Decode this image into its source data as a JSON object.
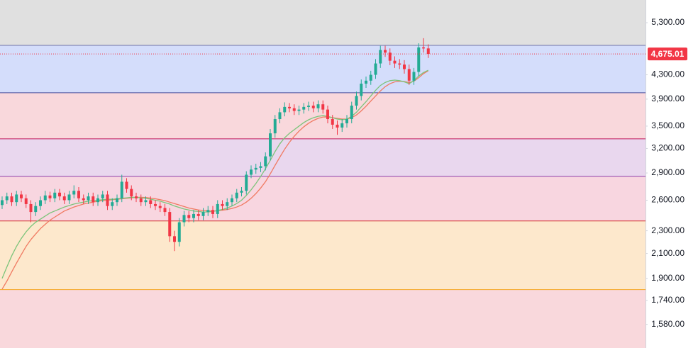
{
  "chart_data": {
    "type": "candlestick",
    "log_scale": true,
    "ylim": [
      1437,
      5805
    ],
    "yticks": [
      {
        "value": 5300,
        "label": "5,300.00"
      },
      {
        "value": 4300,
        "label": "4,300.00"
      },
      {
        "value": 3900,
        "label": "3,900.00"
      },
      {
        "value": 3500,
        "label": "3,500.00"
      },
      {
        "value": 3200,
        "label": "3,200.00"
      },
      {
        "value": 2900,
        "label": "2,900.00"
      },
      {
        "value": 2600,
        "label": "2,600.00"
      },
      {
        "value": 2300,
        "label": "2,300.00"
      },
      {
        "value": 2100,
        "label": "2,100.00"
      },
      {
        "value": 1900,
        "label": "1,900.00"
      },
      {
        "value": 1740,
        "label": "1,740.00"
      },
      {
        "value": 1580,
        "label": "1,580.00"
      }
    ],
    "grid": false,
    "up_color": "#22ab94",
    "down_color": "#f23645",
    "open": [
      2550,
      2600,
      2640,
      2580,
      2660,
      2620,
      2560,
      2480,
      2540,
      2600,
      2650,
      2620,
      2680,
      2640,
      2600,
      2660,
      2700,
      2620,
      2600,
      2640,
      2580,
      2620,
      2660,
      2540,
      2580,
      2620,
      2800,
      2720,
      2640,
      2620,
      2580,
      2600,
      2560,
      2540,
      2520,
      2480,
      2250,
      2200,
      2380,
      2450,
      2420,
      2460,
      2440,
      2480,
      2500,
      2460,
      2560,
      2540,
      2580,
      2620,
      2680,
      2700,
      2880,
      2940,
      2960,
      2980,
      3100,
      3400,
      3600,
      3700,
      3780,
      3760,
      3720,
      3740,
      3780,
      3800,
      3760,
      3820,
      3740,
      3600,
      3520,
      3480,
      3540,
      3600,
      3800,
      3950,
      4150,
      4200,
      4300,
      4500,
      4750,
      4700,
      4550,
      4500,
      4480,
      4400,
      4200,
      4350,
      4800,
      4780
    ],
    "high": [
      2640,
      2680,
      2680,
      2700,
      2700,
      2660,
      2600,
      2580,
      2640,
      2700,
      2690,
      2720,
      2720,
      2680,
      2700,
      2760,
      2740,
      2660,
      2680,
      2680,
      2660,
      2700,
      2700,
      2620,
      2660,
      2880,
      2840,
      2760,
      2680,
      2660,
      2640,
      2640,
      2600,
      2580,
      2560,
      2520,
      2300,
      2420,
      2490,
      2490,
      2500,
      2500,
      2520,
      2540,
      2540,
      2600,
      2600,
      2620,
      2660,
      2720,
      2740,
      2920,
      2990,
      3010,
      3030,
      3150,
      3460,
      3660,
      3760,
      3850,
      3840,
      3820,
      3800,
      3840,
      3860,
      3860,
      3880,
      3880,
      3800,
      3660,
      3580,
      3600,
      3660,
      3860,
      4020,
      4220,
      4270,
      4370,
      4580,
      4830,
      4830,
      4780,
      4630,
      4580,
      4560,
      4480,
      4420,
      4880,
      4980,
      4860
    ],
    "low": [
      2510,
      2560,
      2540,
      2540,
      2580,
      2520,
      2380,
      2440,
      2500,
      2560,
      2580,
      2580,
      2600,
      2560,
      2560,
      2620,
      2580,
      2560,
      2560,
      2540,
      2540,
      2580,
      2500,
      2500,
      2540,
      2580,
      2680,
      2600,
      2580,
      2540,
      2540,
      2520,
      2500,
      2480,
      2440,
      2200,
      2120,
      2160,
      2340,
      2380,
      2380,
      2400,
      2400,
      2440,
      2420,
      2420,
      2500,
      2500,
      2540,
      2580,
      2640,
      2660,
      2840,
      2890,
      2910,
      2930,
      3050,
      3340,
      3540,
      3640,
      3700,
      3660,
      3660,
      3680,
      3720,
      3700,
      3700,
      3680,
      3540,
      3460,
      3380,
      3420,
      3480,
      3540,
      3740,
      3880,
      4080,
      4130,
      4230,
      4420,
      4620,
      4470,
      4420,
      4400,
      4320,
      4130,
      4130,
      4280,
      4700,
      4600
    ],
    "close": [
      2600,
      2640,
      2580,
      2660,
      2620,
      2560,
      2480,
      2540,
      2600,
      2650,
      2620,
      2680,
      2640,
      2600,
      2660,
      2700,
      2620,
      2600,
      2640,
      2580,
      2620,
      2660,
      2540,
      2580,
      2620,
      2800,
      2720,
      2640,
      2620,
      2580,
      2600,
      2560,
      2540,
      2520,
      2480,
      2250,
      2200,
      2380,
      2450,
      2420,
      2460,
      2440,
      2480,
      2500,
      2460,
      2560,
      2540,
      2580,
      2620,
      2680,
      2700,
      2880,
      2940,
      2960,
      2980,
      3100,
      3400,
      3600,
      3700,
      3780,
      3760,
      3720,
      3740,
      3780,
      3800,
      3760,
      3820,
      3740,
      3600,
      3520,
      3480,
      3540,
      3600,
      3800,
      3950,
      4150,
      4200,
      4300,
      4500,
      4750,
      4700,
      4550,
      4500,
      4480,
      4400,
      4200,
      4350,
      4800,
      4780,
      4675.01
    ],
    "overlays": [
      {
        "color": "#f07a62",
        "values": [
          1820,
          1880,
          1950,
          2020,
          2090,
          2160,
          2220,
          2270,
          2320,
          2360,
          2400,
          2430,
          2460,
          2490,
          2510,
          2530,
          2545,
          2560,
          2570,
          2580,
          2590,
          2595,
          2600,
          2605,
          2610,
          2615,
          2620,
          2625,
          2630,
          2630,
          2628,
          2622,
          2615,
          2605,
          2595,
          2580,
          2565,
          2550,
          2535,
          2520,
          2510,
          2500,
          2495,
          2490,
          2490,
          2492,
          2498,
          2505,
          2515,
          2530,
          2550,
          2580,
          2620,
          2670,
          2730,
          2800,
          2890,
          2990,
          3090,
          3190,
          3280,
          3360,
          3430,
          3490,
          3540,
          3580,
          3610,
          3630,
          3630,
          3620,
          3610,
          3600,
          3600,
          3620,
          3660,
          3720,
          3790,
          3870,
          3950,
          4030,
          4100,
          4150,
          4180,
          4190,
          4185,
          4170,
          4190,
          4250,
          4320,
          4370
        ]
      },
      {
        "color": "#7cc47a",
        "values": [
          1900,
          1990,
          2080,
          2160,
          2230,
          2290,
          2340,
          2380,
          2410,
          2440,
          2470,
          2490,
          2510,
          2530,
          2545,
          2560,
          2570,
          2580,
          2590,
          2595,
          2600,
          2605,
          2610,
          2610,
          2615,
          2620,
          2625,
          2630,
          2630,
          2625,
          2620,
          2610,
          2600,
          2590,
          2575,
          2560,
          2540,
          2525,
          2510,
          2500,
          2490,
          2485,
          2480,
          2480,
          2485,
          2495,
          2505,
          2520,
          2540,
          2565,
          2600,
          2650,
          2710,
          2780,
          2860,
          2950,
          3050,
          3160,
          3260,
          3340,
          3400,
          3450,
          3500,
          3550,
          3590,
          3620,
          3640,
          3650,
          3640,
          3620,
          3600,
          3590,
          3600,
          3640,
          3700,
          3780,
          3860,
          3950,
          4040,
          4120,
          4170,
          4200,
          4210,
          4200,
          4180,
          4150,
          4200,
          4280,
          4340,
          4380
        ]
      }
    ],
    "levels": [
      {
        "value": 4839,
        "color": "#6f74a8"
      },
      {
        "value": 4001,
        "color": "#4b4f9a"
      },
      {
        "value": 3326,
        "color": "#c2185b"
      },
      {
        "value": 2862,
        "color": "#8e3fa8"
      },
      {
        "value": 2392,
        "color": "#d32f2f"
      },
      {
        "value": 1816,
        "color": "#f5a623"
      }
    ],
    "zone_colors": [
      "#e0e0e0",
      "#d4ddfb",
      "#f9d8dc",
      "#e9d7ee",
      "#f8d6e0",
      "#fde8cc",
      "#f9d8dc"
    ],
    "current_price": {
      "value": 4675.01,
      "label": "4,675.01"
    },
    "current_price_color": "#f23645"
  }
}
